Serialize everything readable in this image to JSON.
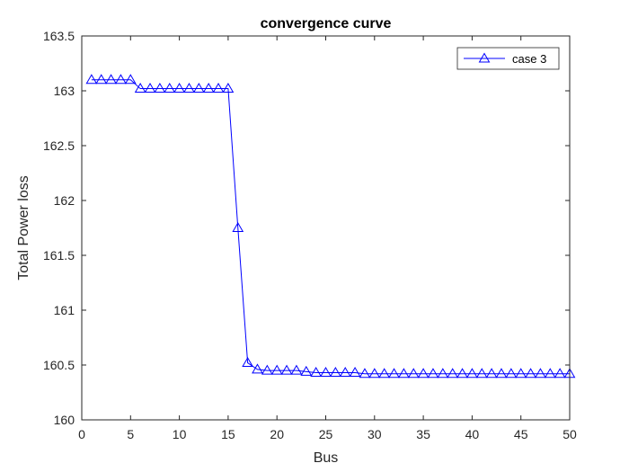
{
  "chart_data": {
    "type": "line",
    "title": "convergence curve",
    "xlabel": "Bus",
    "ylabel": "Total Power loss",
    "xlim": [
      0,
      50
    ],
    "ylim": [
      160,
      163.5
    ],
    "xticks": [
      0,
      5,
      10,
      15,
      20,
      25,
      30,
      35,
      40,
      45,
      50
    ],
    "yticks": [
      160,
      160.5,
      161,
      161.5,
      162,
      162.5,
      163,
      163.5
    ],
    "xtick_labels": [
      "0",
      "5",
      "10",
      "15",
      "20",
      "25",
      "30",
      "35",
      "40",
      "45",
      "50"
    ],
    "ytick_labels": [
      "160",
      "160.5",
      "161",
      "161.5",
      "162",
      "162.5",
      "163",
      "163.5"
    ],
    "grid": false,
    "legend": {
      "position": "top-right"
    },
    "series": [
      {
        "name": "case 3",
        "color": "#0000ff",
        "marker": "triangle",
        "x": [
          1,
          2,
          3,
          4,
          5,
          6,
          7,
          8,
          9,
          10,
          11,
          12,
          13,
          14,
          15,
          16,
          17,
          18,
          19,
          20,
          21,
          22,
          23,
          24,
          25,
          26,
          27,
          28,
          29,
          30,
          31,
          32,
          33,
          34,
          35,
          36,
          37,
          38,
          39,
          40,
          41,
          42,
          43,
          44,
          45,
          46,
          47,
          48,
          49,
          50
        ],
        "y": [
          163.1,
          163.1,
          163.1,
          163.1,
          163.1,
          163.02,
          163.02,
          163.02,
          163.02,
          163.02,
          163.02,
          163.02,
          163.02,
          163.02,
          163.02,
          161.75,
          160.52,
          160.46,
          160.45,
          160.45,
          160.45,
          160.45,
          160.44,
          160.43,
          160.43,
          160.43,
          160.43,
          160.43,
          160.42,
          160.42,
          160.42,
          160.42,
          160.42,
          160.42,
          160.42,
          160.42,
          160.42,
          160.42,
          160.42,
          160.42,
          160.42,
          160.42,
          160.42,
          160.42,
          160.42,
          160.42,
          160.42,
          160.42,
          160.42,
          160.42
        ]
      }
    ]
  }
}
